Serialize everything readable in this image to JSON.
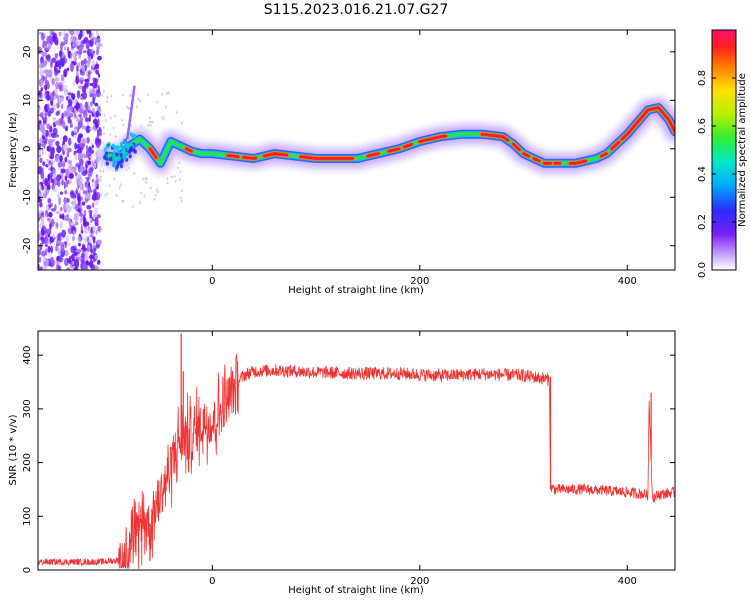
{
  "title": "S115.2023.016.21.07.G27",
  "chart_data": [
    {
      "type": "heatmap",
      "xlabel": "Height of straight line (km)",
      "ylabel": "Frequency (Hz)",
      "xlim": [
        -168,
        446
      ],
      "ylim": [
        -25,
        24.5
      ],
      "xticks": [
        0,
        200,
        400
      ],
      "yticks": [
        -20,
        -10,
        0,
        10,
        20
      ],
      "colorbar": {
        "label": "Normalized spectral amplitude",
        "range": [
          0,
          1
        ],
        "ticks": [
          0.0,
          0.2,
          0.4,
          0.6,
          0.8
        ]
      },
      "ridge": {
        "x": [
          -100,
          -90,
          -80,
          -70,
          -60,
          -50,
          -40,
          -30,
          -20,
          -10,
          0,
          20,
          40,
          60,
          80,
          100,
          120,
          140,
          160,
          180,
          200,
          220,
          240,
          260,
          280,
          290,
          300,
          310,
          320,
          330,
          340,
          350,
          360,
          370,
          380,
          390,
          400,
          410,
          420,
          430,
          440,
          446
        ],
        "y": [
          -1.5,
          -2,
          0.5,
          2,
          0,
          -3,
          1.5,
          0.5,
          -0.5,
          -1,
          -1,
          -1.5,
          -2,
          -1,
          -1.5,
          -2,
          -2,
          -2,
          -1,
          0,
          1.5,
          2.5,
          3,
          3,
          2.5,
          1,
          -1,
          -2,
          -3,
          -3,
          -3,
          -3,
          -2.5,
          -2,
          -1,
          1,
          3,
          5.5,
          8,
          8.5,
          6,
          3.5
        ]
      }
    },
    {
      "type": "line",
      "xlabel": "Height of straight line (km)",
      "ylabel": "SNR (10 * v/v)",
      "xlim": [
        -168,
        446
      ],
      "ylim": [
        0,
        445
      ],
      "xticks": [
        0,
        200,
        400
      ],
      "yticks": [
        0,
        100,
        200,
        300,
        400
      ],
      "series": [
        {
          "color": "#ee3333",
          "x": [
            -168,
            -140,
            -110,
            -90,
            -80,
            -72,
            -65,
            -60,
            -55,
            -50,
            -45,
            -40,
            -35,
            -30,
            -25,
            -20,
            -15,
            -10,
            -5,
            0,
            5,
            10,
            15,
            20,
            25,
            30,
            40,
            60,
            80,
            100,
            140,
            180,
            220,
            260,
            300,
            325,
            326,
            330,
            360,
            400,
            420,
            421,
            424,
            425,
            430,
            446
          ],
          "y": [
            15,
            15,
            15,
            18,
            30,
            70,
            100,
            80,
            120,
            140,
            170,
            190,
            230,
            240,
            250,
            240,
            260,
            270,
            280,
            270,
            290,
            300,
            320,
            335,
            350,
            362,
            370,
            372,
            370,
            368,
            366,
            366,
            362,
            365,
            362,
            355,
            155,
            150,
            150,
            145,
            140,
            320,
            145,
            135,
            140,
            145
          ]
        }
      ],
      "spikes": [
        {
          "x": -30,
          "y": 440
        },
        {
          "x": -28,
          "y": 370
        },
        {
          "x": 423,
          "y": 330
        }
      ]
    }
  ]
}
